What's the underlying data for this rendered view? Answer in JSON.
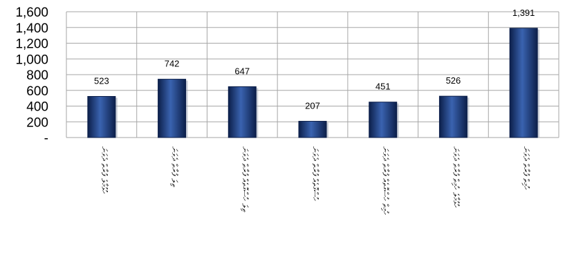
{
  "chart_data": {
    "type": "bar",
    "categories": [
      "ހުޅުމާލެ ފުރާތް ދެވަނަ",
      "ތިލަ ފުރާތް ދެވަނަ",
      "ތިލަ ހުސްގޮތެއް ފުރާތް ދެވަނަ",
      "ހުސްގޮތެއް ފުރާތް ދެވަނަ",
      "ހުމިތް ހުސްގޮތެއް ފުރާތް ދެވަނަ",
      "ހުޅުމާލެ ހުމިތް ފުރާތް ދެވަނަ",
      "ހުމިތް ފުރާތް ދެވަނަ"
    ],
    "values": [
      523,
      742,
      647,
      207,
      451,
      526,
      1391
    ],
    "data_labels": [
      "523",
      "742",
      "647",
      "207",
      "451",
      "526",
      "1,391"
    ],
    "y_ticks": [
      0,
      200,
      400,
      600,
      800,
      1000,
      1200,
      1400,
      1600
    ],
    "y_tick_labels": [
      "-",
      "200",
      "400",
      "600",
      "800",
      "1,000",
      "1,200",
      "1,400",
      "1,600"
    ],
    "ylim": [
      0,
      1600
    ],
    "title": "",
    "xlabel": "",
    "ylabel": "",
    "grid": true,
    "legend": "none",
    "colors": {
      "bar": "#1b3a78",
      "bar_light": "#3a63b0",
      "bar_dark": "#0c1f4a",
      "grid": "#a6a6a6",
      "axis": "#808080"
    }
  }
}
